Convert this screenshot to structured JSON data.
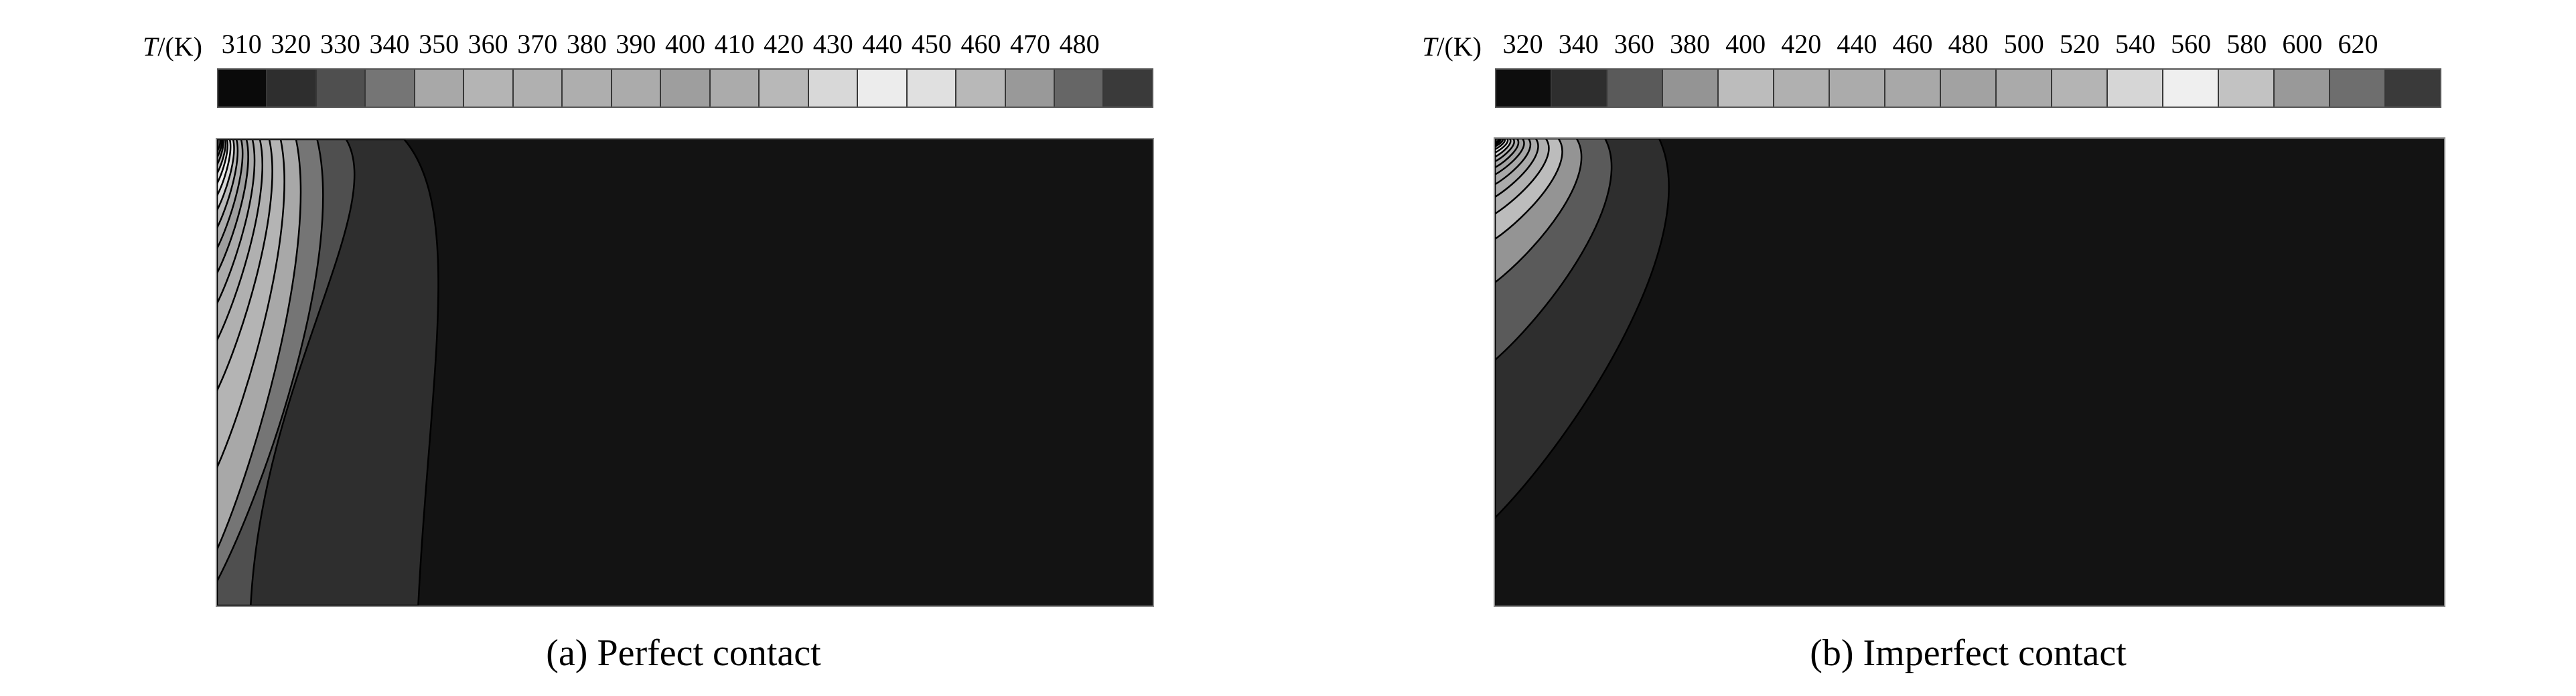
{
  "figure": {
    "colorbar_title": "T/(K)",
    "colorbar_title_variable": "T",
    "colorbar_title_unit": "/(K)"
  },
  "chart_data": [
    {
      "type": "heatmap",
      "title": "(a) Perfect contact",
      "colorbar_title": "T/(K)",
      "colorbar_tick_labels": [
        "310",
        "320",
        "330",
        "340",
        "350",
        "360",
        "370",
        "380",
        "390",
        "400",
        "410",
        "420",
        "430",
        "440",
        "450",
        "460",
        "470",
        "480"
      ],
      "colorbar_levels_K": [
        310,
        320,
        330,
        340,
        350,
        360,
        370,
        380,
        390,
        400,
        410,
        420,
        430,
        440,
        450,
        460,
        470,
        480
      ],
      "colorbar_cell_colors": [
        "#0a0a0a",
        "#2e2e2e",
        "#4f4f4f",
        "#757575",
        "#a8a8a8",
        "#b4b4b4",
        "#b0b0b0",
        "#aeaeae",
        "#ababab",
        "#9e9e9e",
        "#ababab",
        "#b8b8b8",
        "#d8d8d8",
        "#ececec",
        "#e0e0e0",
        "#b8b8b8",
        "#999999",
        "#666666",
        "#3a3a3a"
      ],
      "background_color": "#131313",
      "description": "Filled temperature contour field; heat source at top-left corner, coldest (dark) region fills the right bulk of the domain.",
      "contour_bands": [
        {
          "color": "#2e2e2e",
          "top_x_frac": 0.2,
          "end_edge": "bottom",
          "end_frac": 0.215
        },
        {
          "color": "#4f4f4f",
          "top_x_frac": 0.138,
          "end_edge": "bottom",
          "end_frac": 0.036
        },
        {
          "color": "#757575",
          "top_x_frac": 0.107,
          "end_edge": "left",
          "end_frac": 0.948
        },
        {
          "color": "#a8a8a8",
          "top_x_frac": 0.0845,
          "end_edge": "left",
          "end_frac": 0.88
        },
        {
          "color": "#b4b4b4",
          "top_x_frac": 0.068,
          "end_edge": "left",
          "end_frac": 0.704
        },
        {
          "color": "#b0b0b0",
          "top_x_frac": 0.0558,
          "end_edge": "left",
          "end_frac": 0.539
        },
        {
          "color": "#aeaeae",
          "top_x_frac": 0.0458,
          "end_edge": "left",
          "end_frac": 0.431
        },
        {
          "color": "#ababab",
          "top_x_frac": 0.0379,
          "end_edge": "left",
          "end_frac": 0.352
        },
        {
          "color": "#9e9e9e",
          "top_x_frac": 0.0315,
          "end_edge": "left",
          "end_frac": 0.287
        },
        {
          "color": "#ababab",
          "top_x_frac": 0.0258,
          "end_edge": "left",
          "end_frac": 0.234
        },
        {
          "color": "#b8b8b8",
          "top_x_frac": 0.0208,
          "end_edge": "left",
          "end_frac": 0.19
        },
        {
          "color": "#d8d8d8",
          "top_x_frac": 0.0172,
          "end_edge": "left",
          "end_frac": 0.152
        },
        {
          "color": "#ececec",
          "top_x_frac": 0.0136,
          "end_edge": "left",
          "end_frac": 0.121
        },
        {
          "color": "#e0e0e0",
          "top_x_frac": 0.0107,
          "end_edge": "left",
          "end_frac": 0.0948
        },
        {
          "color": "#b8b8b8",
          "top_x_frac": 0.0086,
          "end_edge": "left",
          "end_frac": 0.0733
        },
        {
          "color": "#999999",
          "top_x_frac": 0.0064,
          "end_edge": "left",
          "end_frac": 0.0546
        },
        {
          "color": "#666666",
          "top_x_frac": 0.005,
          "end_edge": "left",
          "end_frac": 0.0388
        },
        {
          "color": "#3a3a3a",
          "top_x_frac": 0.0036,
          "end_edge": "left",
          "end_frac": 0.0259
        }
      ]
    },
    {
      "type": "heatmap",
      "title": "(b) Imperfect contact",
      "colorbar_title": "T/(K)",
      "colorbar_tick_labels": [
        "320",
        "340",
        "360",
        "380",
        "400",
        "420",
        "440",
        "460",
        "480",
        "500",
        "520",
        "540",
        "560",
        "580",
        "600",
        "620"
      ],
      "colorbar_levels_K": [
        320,
        340,
        360,
        380,
        400,
        420,
        440,
        460,
        480,
        500,
        520,
        540,
        560,
        580,
        600,
        620
      ],
      "colorbar_cell_colors": [
        "#0d0d0d",
        "#2e2e2e",
        "#5a5a5a",
        "#949494",
        "#bcbcbc",
        "#b0b0b0",
        "#ababab",
        "#a8a8a8",
        "#a2a2a2",
        "#aaaaaa",
        "#b4b4b4",
        "#d6d6d6",
        "#efefef",
        "#c2c2c2",
        "#999999",
        "#6e6e6e",
        "#3a3a3a"
      ],
      "background_color": "#131313",
      "description": "Filled temperature contour field; hotter, more compact corner hot-spot than panel (a), dark cold region covers most of the domain.",
      "contour_bands": [
        {
          "color": "#2e2e2e",
          "top_x_frac": 0.173,
          "end_edge": "left",
          "end_frac": 0.812
        },
        {
          "color": "#5a5a5a",
          "top_x_frac": 0.116,
          "end_edge": "left",
          "end_frac": 0.474
        },
        {
          "color": "#949494",
          "top_x_frac": 0.086,
          "end_edge": "left",
          "end_frac": 0.308
        },
        {
          "color": "#bcbcbc",
          "top_x_frac": 0.067,
          "end_edge": "left",
          "end_frac": 0.215
        },
        {
          "color": "#b0b0b0",
          "top_x_frac": 0.0536,
          "end_edge": "left",
          "end_frac": 0.161
        },
        {
          "color": "#ababab",
          "top_x_frac": 0.043,
          "end_edge": "left",
          "end_frac": 0.125
        },
        {
          "color": "#a8a8a8",
          "top_x_frac": 0.0353,
          "end_edge": "left",
          "end_frac": 0.098
        },
        {
          "color": "#a2a2a2",
          "top_x_frac": 0.0289,
          "end_edge": "left",
          "end_frac": 0.077
        },
        {
          "color": "#aaaaaa",
          "top_x_frac": 0.0233,
          "end_edge": "left",
          "end_frac": 0.062
        },
        {
          "color": "#b4b4b4",
          "top_x_frac": 0.0191,
          "end_edge": "left",
          "end_frac": 0.049
        },
        {
          "color": "#d6d6d6",
          "top_x_frac": 0.0155,
          "end_edge": "left",
          "end_frac": 0.039
        },
        {
          "color": "#efefef",
          "top_x_frac": 0.0127,
          "end_edge": "left",
          "end_frac": 0.03
        },
        {
          "color": "#c2c2c2",
          "top_x_frac": 0.0099,
          "end_edge": "left",
          "end_frac": 0.023
        },
        {
          "color": "#999999",
          "top_x_frac": 0.0078,
          "end_edge": "left",
          "end_frac": 0.017
        },
        {
          "color": "#6e6e6e",
          "top_x_frac": 0.0056,
          "end_edge": "left",
          "end_frac": 0.013
        },
        {
          "color": "#3a3a3a",
          "top_x_frac": 0.0042,
          "end_edge": "left",
          "end_frac": 0.009
        }
      ]
    }
  ]
}
